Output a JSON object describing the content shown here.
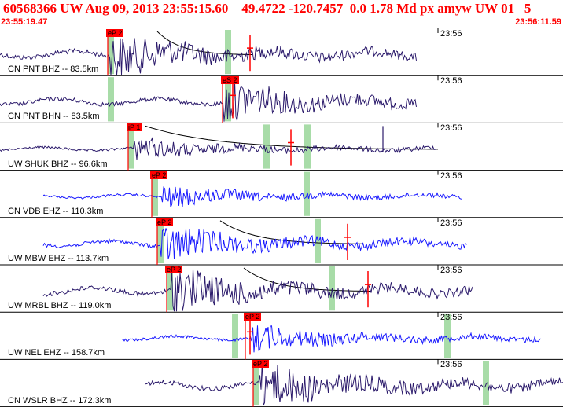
{
  "header": {
    "title": "60568366 UW Aug 09, 2013 23:55:15.60    49.4722 -120.7457  0.0 1.78 Md px amyw UW 01   5",
    "start_time": "23:55:19.47",
    "end_time": "23:56:11.59"
  },
  "colors": {
    "accent": "#ff0000",
    "trace_dark": "#2b1a6b",
    "trace_blue": "#1a1aff",
    "window_green": "#a8dca8"
  },
  "traces": [
    {
      "label": "CN PNT BHZ -- 83.5km",
      "time_mark": "23:56",
      "pick": "eP 2",
      "color": "dark"
    },
    {
      "label": "CN PNT BHN -- 83.5km",
      "time_mark": "23:56",
      "pick": "eS 2",
      "color": "dark"
    },
    {
      "label": "UW SHUK BHZ -- 96.6km",
      "time_mark": "23:56",
      "pick": "iP 1",
      "color": "dark"
    },
    {
      "label": "CN VDB EHZ -- 110.3km",
      "time_mark": "23:56",
      "pick": "eP 2",
      "color": "blue"
    },
    {
      "label": "UW MBW EHZ -- 113.7km",
      "time_mark": "23:56",
      "pick": "eP 2",
      "color": "blue"
    },
    {
      "label": "UW MRBL BHZ -- 119.0km",
      "time_mark": "23:56",
      "pick": "eP 2",
      "color": "dark"
    },
    {
      "label": "UW NEL EHZ -- 158.7km",
      "time_mark": "23:56",
      "pick": "eP 2",
      "color": "blue"
    },
    {
      "label": "CN WSLR BHZ -- 172.3km",
      "time_mark": "23:56",
      "pick": "eP 2",
      "color": "dark"
    }
  ]
}
